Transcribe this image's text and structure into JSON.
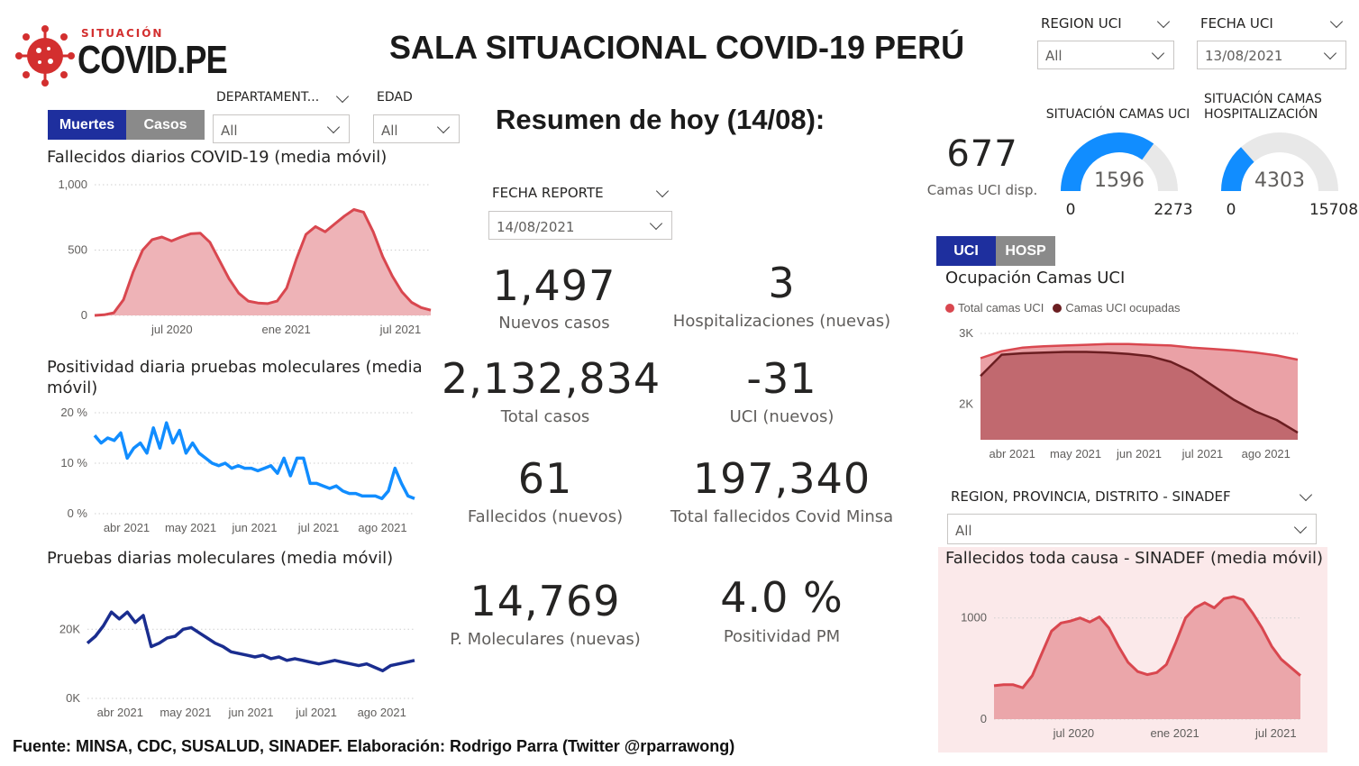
{
  "brand": {
    "small": "SITUACIÓN",
    "big": "COVID.PE",
    "color": "#d32f2f"
  },
  "title": "SALA SITUACIONAL COVID-19 PERÚ",
  "top_slicers": [
    {
      "title": "REGION UCI",
      "value": "All"
    },
    {
      "title": "FECHA UCI",
      "value": "13/08/2021"
    }
  ],
  "left_slicers": [
    {
      "title": "DEPARTAMENT...",
      "value": "All"
    },
    {
      "title": "EDAD",
      "value": "All"
    }
  ],
  "toggle_left": {
    "a": "Muertes",
    "b": "Casos",
    "a_color": "#1e2f9e",
    "b_color": "#8a8a8a"
  },
  "summary": {
    "heading": "Resumen de hoy (14/08):",
    "slicer_title": "FECHA REPORTE",
    "slicer_value": "14/08/2021",
    "kpis": [
      {
        "value": "1,497",
        "label": "Nuevos casos"
      },
      {
        "value": "3",
        "label": "Hospitalizaciones (nuevas)"
      },
      {
        "value": "2,132,834",
        "label": "Total casos"
      },
      {
        "value": "-31",
        "label": "UCI (nuevos)"
      },
      {
        "value": "61",
        "label": "Fallecidos  (nuevos)"
      },
      {
        "value": "197,340",
        "label": "Total fallecidos Covid Minsa"
      },
      {
        "value": "14,769",
        "label": "P. Moleculares (nuevas)"
      },
      {
        "value": "4.0 %",
        "label": "Positividad PM"
      }
    ]
  },
  "uci_kpi": {
    "value": "677",
    "label": "Camas UCI disp."
  },
  "gauges": [
    {
      "title": "SITUACIÓN CAMAS UCI",
      "value": "1596",
      "min": "0",
      "max": "2273",
      "fraction": 0.7,
      "color": "#118dff"
    },
    {
      "title": "SITUACIÓN CAMAS HOSPITALIZACIÓN",
      "value": "4303",
      "min": "0",
      "max": "15708",
      "fraction": 0.27,
      "color": "#118dff"
    }
  ],
  "toggle_right": {
    "a": "UCI",
    "b": "HOSP",
    "a_color": "#1e2f9e",
    "b_color": "#8a8a8a"
  },
  "region_slicer": {
    "title": "REGION, PROVINCIA, DISTRITO - SINADEF",
    "value": "All"
  },
  "footer": "Fuente: MINSA, CDC, SUSALUD, SINADEF. Elaboración: Rodrigo Parra (Twitter @rparrawong)",
  "chart_data": [
    {
      "id": "fallecidos",
      "type": "area",
      "title": "Fallecidos diarios COVID-19 (media móvil)",
      "color": "#d9474f",
      "fill": "#eeb3b7",
      "ylim": [
        0,
        1000
      ],
      "yticks": [
        "0",
        "500",
        "1,000"
      ],
      "xticks": [
        "jul 2020",
        "ene 2021",
        "jul 2021"
      ],
      "values": [
        0,
        5,
        20,
        120,
        330,
        500,
        580,
        600,
        570,
        600,
        625,
        630,
        560,
        420,
        280,
        170,
        110,
        95,
        90,
        110,
        210,
        430,
        620,
        680,
        640,
        700,
        760,
        810,
        790,
        640,
        450,
        300,
        180,
        100,
        60,
        40
      ]
    },
    {
      "id": "positividad",
      "type": "line",
      "title": "Positividad diaria pruebas moleculares (media móvil)",
      "color": "#118dff",
      "ylim": [
        0,
        20
      ],
      "yticks": [
        "0 %",
        "10 %",
        "20 %"
      ],
      "xticks": [
        "abr 2021",
        "may 2021",
        "jun 2021",
        "jul 2021",
        "ago 2021"
      ],
      "values": [
        15.5,
        14,
        15,
        14.5,
        16,
        11,
        13,
        14,
        12,
        17,
        13,
        18,
        14,
        16.5,
        12,
        14,
        12,
        11,
        10,
        9.5,
        10,
        9,
        9.5,
        9,
        9,
        8.5,
        9,
        9.5,
        8,
        11,
        7.5,
        11,
        11,
        6,
        6,
        5.5,
        5,
        5.5,
        4.5,
        4,
        4,
        3.5,
        3.5,
        3.5,
        3,
        4.5,
        9,
        6,
        3.5,
        3
      ]
    },
    {
      "id": "pruebas",
      "type": "line",
      "title": "Pruebas diarias moleculares (media móvil)",
      "color": "#1a2d8f",
      "ylim": [
        0,
        30000
      ],
      "yticks": [
        "0K",
        "20K"
      ],
      "xticks": [
        "abr 2021",
        "may 2021",
        "jun 2021",
        "jul 2021",
        "ago 2021"
      ],
      "values": [
        16000,
        18000,
        21000,
        25000,
        23000,
        25000,
        22000,
        24000,
        15000,
        16000,
        17500,
        18000,
        20000,
        20500,
        19000,
        17500,
        16000,
        15000,
        13500,
        13000,
        12500,
        12000,
        12500,
        11500,
        12000,
        11000,
        11500,
        11000,
        10500,
        10000,
        10500,
        11000,
        10500,
        10000,
        9500,
        10000,
        9000,
        8000,
        9500,
        10000,
        10500,
        11000
      ]
    },
    {
      "id": "uci",
      "type": "area",
      "title": "Ocupación Camas UCI",
      "legend": [
        "Total camas UCI",
        "Camas UCI ocupadas"
      ],
      "colors": [
        "#d9474f",
        "#6b1e21"
      ],
      "ylim": [
        1500,
        3000
      ],
      "yticks": [
        "2K",
        "3K"
      ],
      "xticks": [
        "abr 2021",
        "may 2021",
        "jun 2021",
        "jul 2021",
        "ago 2021"
      ],
      "total": [
        2650,
        2750,
        2800,
        2820,
        2830,
        2840,
        2850,
        2850,
        2840,
        2830,
        2800,
        2780,
        2760,
        2730,
        2690,
        2630
      ],
      "occupied": [
        2400,
        2700,
        2720,
        2730,
        2740,
        2740,
        2730,
        2710,
        2680,
        2600,
        2460,
        2260,
        2060,
        1900,
        1780,
        1600
      ]
    },
    {
      "id": "sinadef",
      "type": "area",
      "title": "Fallecidos toda causa - SINADEF (media móvil)",
      "color": "#d9474f",
      "fill": "#eba6aa",
      "ylim": [
        0,
        1300
      ],
      "yticks": [
        "0",
        "1000"
      ],
      "xticks": [
        "jul 2020",
        "ene 2021",
        "jul 2021"
      ],
      "values": [
        330,
        340,
        340,
        310,
        430,
        650,
        870,
        950,
        970,
        1000,
        960,
        1010,
        900,
        720,
        560,
        470,
        440,
        460,
        540,
        760,
        1000,
        1100,
        1150,
        1100,
        1190,
        1210,
        1180,
        1050,
        900,
        720,
        590,
        510,
        430
      ]
    }
  ]
}
